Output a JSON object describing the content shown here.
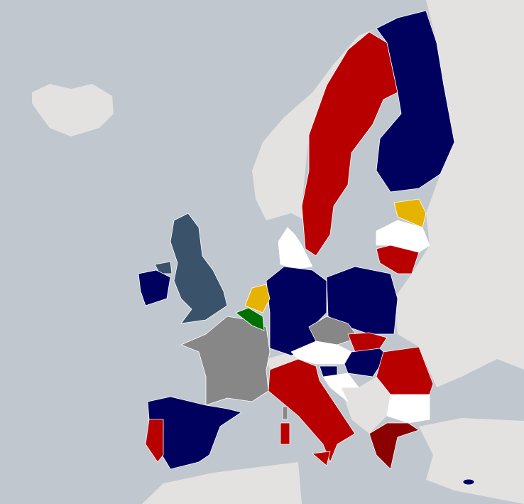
{
  "map": {
    "sea_color": "#c0c7ce",
    "non_member_land_color": "#e3e2e1",
    "palette": {
      "navy": "#00005f",
      "red": "#b80000",
      "dark_red": "#8b0000",
      "slate": "#3a536b",
      "gold": "#e6b400",
      "green": "#007000",
      "gray": "#878787",
      "white": "#ffffff"
    },
    "regions": [
      {
        "id": "iceland",
        "fill": "#e3e2e1"
      },
      {
        "id": "norway",
        "fill": "#e3e2e1"
      },
      {
        "id": "east-europe-land",
        "fill": "#e3e2e1"
      },
      {
        "id": "black-sea",
        "fill": "#c0c7ce"
      },
      {
        "id": "turkey",
        "fill": "#e3e2e1"
      },
      {
        "id": "balkans",
        "fill": "#e3e2e1"
      },
      {
        "id": "north-africa",
        "fill": "#e3e2e1"
      },
      {
        "id": "switzerland",
        "fill": "#e3e2e1"
      },
      {
        "id": "sweden",
        "fill": "#b80000"
      },
      {
        "id": "finland",
        "fill": "#00005f"
      },
      {
        "id": "estonia",
        "fill": "#e6b400"
      },
      {
        "id": "latvia",
        "fill": "#ffffff"
      },
      {
        "id": "lithuania",
        "fill": "#b80000"
      },
      {
        "id": "denmark",
        "fill": "#ffffff"
      },
      {
        "id": "germany",
        "fill": "#00005f"
      },
      {
        "id": "poland",
        "fill": "#00005f"
      },
      {
        "id": "czechia",
        "fill": "#878787"
      },
      {
        "id": "slovakia",
        "fill": "#b80000"
      },
      {
        "id": "austria",
        "fill": "#ffffff"
      },
      {
        "id": "hungary",
        "fill": "#00005f"
      },
      {
        "id": "slovenia",
        "fill": "#00005f"
      },
      {
        "id": "croatia",
        "fill": "#ffffff"
      },
      {
        "id": "romania",
        "fill": "#b80000"
      },
      {
        "id": "bulgaria",
        "fill": "#ffffff"
      },
      {
        "id": "greece",
        "fill": "#8b0000"
      },
      {
        "id": "italy",
        "fill": "#b80000"
      },
      {
        "id": "sardinia",
        "fill": "#b80000"
      },
      {
        "id": "sicily",
        "fill": "#b80000"
      },
      {
        "id": "corsica",
        "fill": "#878787"
      },
      {
        "id": "france",
        "fill": "#878787"
      },
      {
        "id": "belgium",
        "fill": "#007000"
      },
      {
        "id": "netherlands",
        "fill": "#e6b400"
      },
      {
        "id": "spain",
        "fill": "#00005f"
      },
      {
        "id": "portugal",
        "fill": "#b80000"
      },
      {
        "id": "united-kingdom",
        "fill": "#3a536b"
      },
      {
        "id": "northern-ireland",
        "fill": "#3a536b"
      },
      {
        "id": "ireland",
        "fill": "#00005f"
      },
      {
        "id": "cyprus",
        "fill": "#00005f"
      }
    ]
  }
}
